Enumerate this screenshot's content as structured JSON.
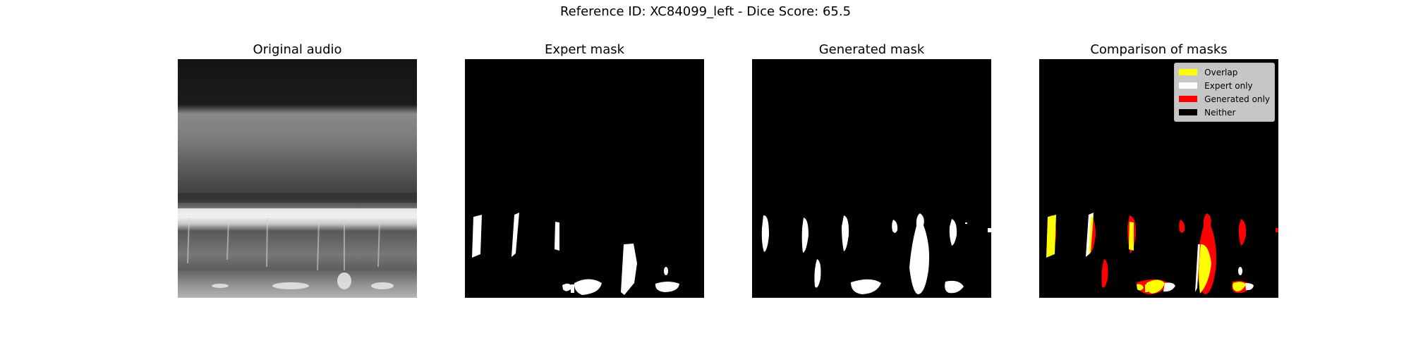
{
  "figure": {
    "suptitle": "Reference ID: XC84099_left - Dice Score: 65.5"
  },
  "panels": [
    {
      "title": "Original audio"
    },
    {
      "title": "Expert mask"
    },
    {
      "title": "Generated mask"
    },
    {
      "title": "Comparison of masks"
    }
  ],
  "legend": [
    {
      "label": "Overlap",
      "color": "#ffff00"
    },
    {
      "label": "Expert only",
      "color": "#ffffff"
    },
    {
      "label": "Generated only",
      "color": "#ff0000"
    },
    {
      "label": "Neither",
      "color": "#000000"
    }
  ]
}
